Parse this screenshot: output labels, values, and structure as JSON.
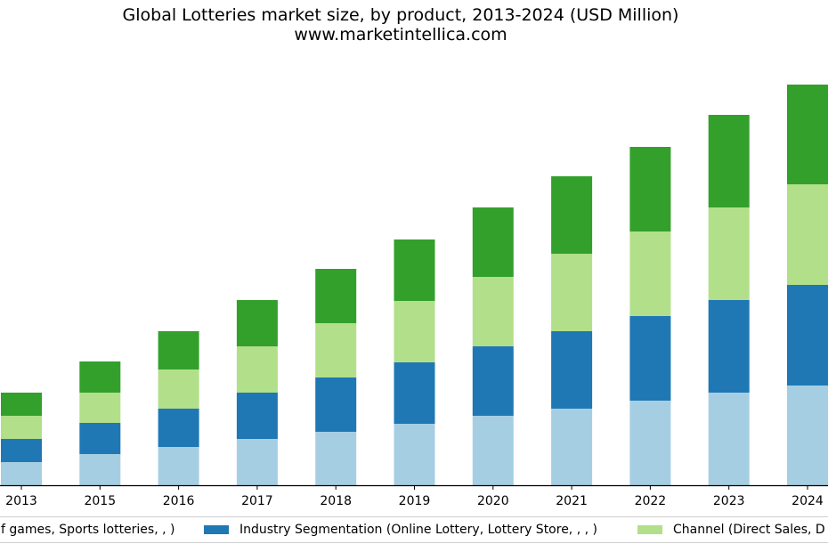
{
  "chart_data": {
    "type": "bar",
    "stacked": true,
    "title": "Global Lotteries market size, by product, 2013-2024 (USD Million)",
    "subtitle": "www.marketintellica.com",
    "xlabel": "",
    "ylabel": "",
    "categories": [
      "2013",
      "2015",
      "2016",
      "2017",
      "2018",
      "2019",
      "2020",
      "2021",
      "2022",
      "2023",
      "2024"
    ],
    "ylim": [
      0,
      450
    ],
    "grid": false,
    "legend_position": "bottom",
    "series": [
      {
        "name": "Type of games, Sports lotteries, , )",
        "color": "#a6cee3",
        "values": [
          26,
          35,
          43,
          52,
          60,
          69,
          78,
          86,
          95,
          104,
          112
        ]
      },
      {
        "name": "Industry Segmentation (Online Lottery, Lottery Store, , , )",
        "color": "#1f78b4",
        "values": [
          26,
          35,
          43,
          52,
          61,
          69,
          78,
          87,
          95,
          104,
          113
        ]
      },
      {
        "name": "Channel (Direct Sales, D",
        "color": "#b2df8a",
        "values": [
          26,
          34,
          44,
          52,
          61,
          69,
          78,
          87,
          95,
          104,
          113
        ]
      },
      {
        "name": "",
        "color": "#33a02c",
        "values": [
          26,
          35,
          43,
          52,
          61,
          69,
          78,
          87,
          95,
          104,
          112
        ]
      }
    ]
  },
  "legend": {
    "items": [
      {
        "label": "f games, Sports lotteries, , )",
        "color": "#a6cee3"
      },
      {
        "label": "Industry Segmentation (Online Lottery, Lottery Store, , , )",
        "color": "#1f78b4"
      },
      {
        "label": "Channel (Direct Sales, D",
        "color": "#b2df8a"
      }
    ]
  }
}
